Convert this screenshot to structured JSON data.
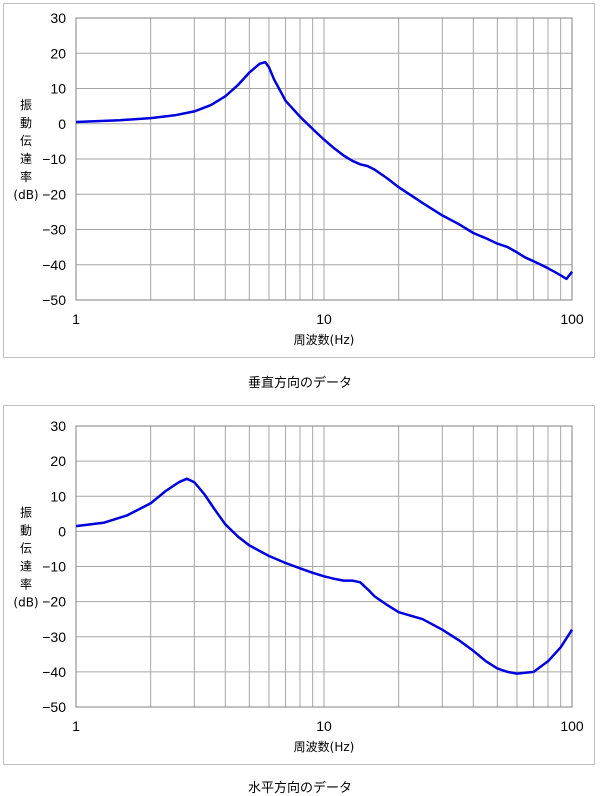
{
  "charts": [
    {
      "caption": "垂直方向のデータ",
      "ylabel_chars": [
        "振",
        "動",
        "伝",
        "達",
        "率",
        "(dB)"
      ],
      "xlabel": "周波数(Hz)"
    },
    {
      "caption": "水平方向のデータ",
      "ylabel_chars": [
        "振",
        "動",
        "伝",
        "達",
        "率",
        "(dB)"
      ],
      "xlabel": "周波数(Hz)"
    }
  ],
  "colors": {
    "line": "#0000dd",
    "grid": "#a6a6a6",
    "border": "#bfbfbf"
  },
  "chart_data": [
    {
      "type": "line",
      "title": "",
      "caption": "垂直方向のデータ",
      "xlabel": "周波数(Hz)",
      "ylabel": "振動伝達率(dB)",
      "xscale": "log",
      "xlim": [
        1,
        100
      ],
      "ylim": [
        -50,
        30
      ],
      "x_ticks": [
        "1",
        "10",
        "100"
      ],
      "y_ticks": [
        "30",
        "20",
        "10",
        "0",
        "−10",
        "−20",
        "−30",
        "−40",
        "−50"
      ],
      "grid": true,
      "series": [
        {
          "x": [
            1,
            1.5,
            2,
            2.5,
            3,
            3.5,
            4,
            4.5,
            5,
            5.5,
            5.8,
            6,
            6.3,
            6.7,
            7,
            8,
            9,
            10,
            11,
            12,
            13,
            14,
            15,
            16,
            18,
            20,
            25,
            30,
            35,
            40,
            45,
            50,
            55,
            60,
            65,
            70,
            75,
            80,
            85,
            90,
            95,
            100
          ],
          "y": [
            0.5,
            1.0,
            1.6,
            2.4,
            3.5,
            5.3,
            7.8,
            11.0,
            14.5,
            17.0,
            17.5,
            16.0,
            12.5,
            9.0,
            6.5,
            2.0,
            -1.5,
            -4.5,
            -7.0,
            -9.0,
            -10.5,
            -11.5,
            -12.0,
            -13.0,
            -15.5,
            -18.0,
            -22.5,
            -26.0,
            -28.5,
            -31.0,
            -32.5,
            -34.0,
            -35.0,
            -36.5,
            -38.0,
            -39.0,
            -40.0,
            -41.0,
            -42.0,
            -43.0,
            -44.0,
            -42.0
          ]
        }
      ]
    },
    {
      "type": "line",
      "title": "",
      "caption": "水平方向のデータ",
      "xlabel": "周波数(Hz)",
      "ylabel": "振動伝達率(dB)",
      "xscale": "log",
      "xlim": [
        1,
        100
      ],
      "ylim": [
        -50,
        30
      ],
      "x_ticks": [
        "1",
        "10",
        "100"
      ],
      "y_ticks": [
        "30",
        "20",
        "10",
        "0",
        "−10",
        "−20",
        "−30",
        "−40",
        "−50"
      ],
      "grid": true,
      "series": [
        {
          "x": [
            1,
            1.3,
            1.6,
            2,
            2.3,
            2.6,
            2.8,
            3,
            3.3,
            3.6,
            4,
            4.5,
            5,
            6,
            7,
            8,
            9,
            10,
            11,
            12,
            13,
            14,
            15,
            16,
            18,
            20,
            25,
            30,
            35,
            40,
            45,
            50,
            55,
            60,
            70,
            80,
            90,
            100
          ],
          "y": [
            1.5,
            2.5,
            4.5,
            8.0,
            11.5,
            14.0,
            15.0,
            14.0,
            10.5,
            6.5,
            2.0,
            -1.5,
            -4.0,
            -7.0,
            -9.0,
            -10.5,
            -11.8,
            -12.8,
            -13.5,
            -14.0,
            -14.0,
            -14.5,
            -16.5,
            -18.5,
            -21.0,
            -23.0,
            -25.0,
            -28.0,
            -31.0,
            -34.0,
            -37.0,
            -39.0,
            -40.0,
            -40.5,
            -40.0,
            -37.0,
            -33.0,
            -28.0
          ]
        }
      ]
    }
  ]
}
